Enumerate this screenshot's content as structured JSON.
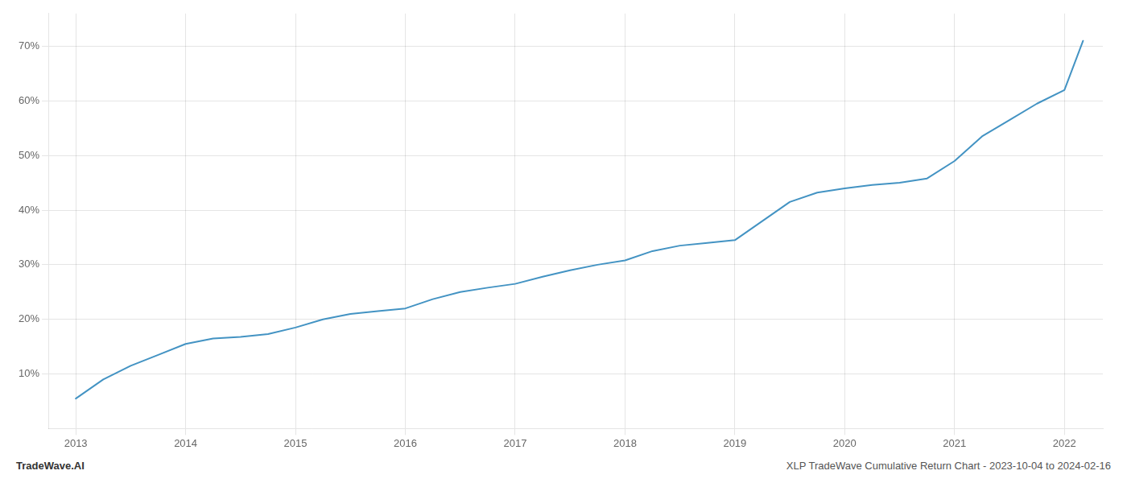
{
  "chart_data": {
    "type": "line",
    "color": "#4393c3",
    "grid": true,
    "annotations": [
      "TradeWave.AI",
      "XLP TradeWave Cumulative Return Chart - 2023-10-04 to 2024-02-16"
    ],
    "x": [
      2013.0,
      2013.25,
      2013.5,
      2013.75,
      2014.0,
      2014.25,
      2014.5,
      2014.75,
      2015.0,
      2015.25,
      2015.5,
      2015.75,
      2016.0,
      2016.25,
      2016.5,
      2016.75,
      2017.0,
      2017.25,
      2017.5,
      2017.75,
      2018.0,
      2018.25,
      2018.5,
      2018.75,
      2019.0,
      2019.25,
      2019.5,
      2019.75,
      2020.0,
      2020.25,
      2020.5,
      2020.75,
      2021.0,
      2021.25,
      2021.5,
      2021.75,
      2022.0,
      2022.17
    ],
    "values": [
      0.055,
      0.09,
      0.115,
      0.135,
      0.155,
      0.165,
      0.168,
      0.173,
      0.185,
      0.2,
      0.21,
      0.215,
      0.22,
      0.237,
      0.25,
      0.258,
      0.265,
      0.278,
      0.29,
      0.3,
      0.308,
      0.325,
      0.335,
      0.34,
      0.345,
      0.38,
      0.415,
      0.432,
      0.44,
      0.446,
      0.45,
      0.458,
      0.49,
      0.535,
      0.565,
      0.595,
      0.62,
      0.71
    ],
    "xlim": [
      2012.75,
      2022.35
    ],
    "ylim": [
      0.0,
      0.76
    ],
    "xticks": [
      2013,
      2014,
      2015,
      2016,
      2017,
      2018,
      2019,
      2020,
      2021,
      2022
    ],
    "yticks": [
      {
        "value": 0.1,
        "label": "10%"
      },
      {
        "value": 0.2,
        "label": "20%"
      },
      {
        "value": 0.3,
        "label": "30%"
      },
      {
        "value": 0.4,
        "label": "40%"
      },
      {
        "value": 0.5,
        "label": "50%"
      },
      {
        "value": 0.6,
        "label": "60%"
      },
      {
        "value": 0.7,
        "label": "70%"
      }
    ]
  }
}
